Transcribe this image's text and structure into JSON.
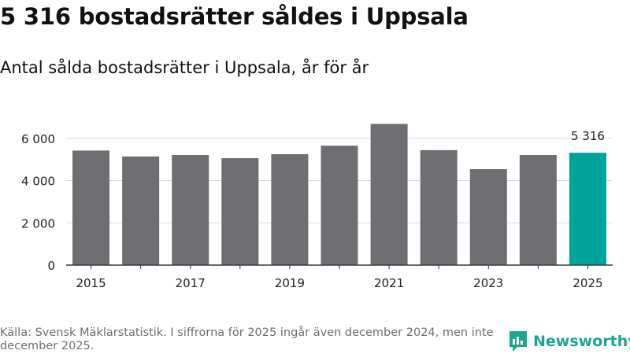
{
  "header": {
    "title": "5 316 bostadsrätter såldes i Uppsala",
    "subtitle": "Antal sålda bostadsrätter i Uppsala, år för år"
  },
  "footer": {
    "source": "Källa: Svensk Mäklarstatistik. I siffrorna för 2025 ingår även december 2024, men inte december 2025.",
    "brand": "Newsworthy"
  },
  "colors": {
    "bar": "#6e6d72",
    "highlight": "#00a39a",
    "grid": "#d9d9d9",
    "text": "#222222"
  },
  "chart_data": {
    "type": "bar",
    "title": "Antal sålda bostadsrätter i Uppsala, år för år",
    "xlabel": "",
    "ylabel": "",
    "categories": [
      "2015",
      "2016",
      "2017",
      "2018",
      "2019",
      "2020",
      "2021",
      "2022",
      "2023",
      "2024",
      "2025"
    ],
    "values": [
      5420,
      5140,
      5210,
      5060,
      5250,
      5650,
      6680,
      5440,
      4540,
      5210,
      5316
    ],
    "highlight_index": 10,
    "highlight_label": "5 316",
    "ylim": [
      0,
      6700
    ],
    "yticks": [
      0,
      2000,
      4000,
      6000
    ],
    "ytick_labels": [
      "0",
      "2 000",
      "4 000",
      "6 000"
    ],
    "xtick_labels": [
      "2015",
      "2017",
      "2019",
      "2021",
      "2023",
      "2025"
    ],
    "grid": true
  }
}
